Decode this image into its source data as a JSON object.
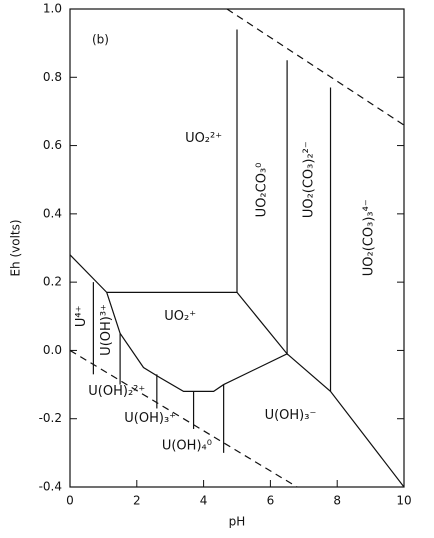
{
  "chart_data": {
    "type": "line",
    "annotation": "(b)",
    "xlabel": "pH",
    "ylabel": "Eh (volts)",
    "xlim": [
      0,
      10
    ],
    "ylim": [
      -0.4,
      1.0
    ],
    "xticks": [
      0,
      2,
      4,
      6,
      8,
      10
    ],
    "yticks": [
      {
        "value": 1.0,
        "label": "1.0"
      },
      0.8,
      0.6,
      0.4,
      0.2,
      {
        "value": 0,
        "label": "0.0"
      },
      -0.2,
      -0.4
    ],
    "color": "#111111",
    "boundaries": [
      {
        "x": [
          4.7,
          10
        ],
        "y": [
          1.0,
          0.66
        ],
        "dashed": true
      },
      {
        "x": [
          0,
          6.8
        ],
        "y": [
          0,
          -0.4
        ],
        "dashed": true
      },
      {
        "x": [
          0,
          1.1,
          1.5,
          2.2,
          2.7,
          3.4,
          4.3,
          4.6,
          6.5,
          7.8,
          10
        ],
        "y": [
          0.28,
          0.17,
          0.05,
          -0.05,
          -0.08,
          -0.12,
          -0.12,
          -0.1,
          -0.01,
          -0.12,
          -0.4
        ],
        "dashed": false
      },
      {
        "x": [
          1.1,
          5.0,
          5.0
        ],
        "y": [
          0.17,
          0.17,
          0.94
        ],
        "dashed": false
      },
      {
        "x": [
          5.0,
          6.5,
          6.5
        ],
        "y": [
          0.17,
          -0.01,
          0.85
        ],
        "dashed": false
      },
      {
        "x": [
          7.8,
          7.8
        ],
        "y": [
          -0.12,
          0.77
        ],
        "dashed": false
      },
      {
        "x": [
          0.7,
          0.7
        ],
        "y": [
          0.2,
          -0.07
        ],
        "dashed": false
      },
      {
        "x": [
          1.5,
          1.5
        ],
        "y": [
          0.05,
          -0.1
        ],
        "dashed": false
      },
      {
        "x": [
          2.6,
          2.6
        ],
        "y": [
          -0.07,
          -0.17
        ],
        "dashed": false
      },
      {
        "x": [
          3.7,
          3.7
        ],
        "y": [
          -0.12,
          -0.23
        ],
        "dashed": false
      },
      {
        "x": [
          4.6,
          4.6
        ],
        "y": [
          -0.1,
          -0.3
        ],
        "dashed": false
      }
    ],
    "regions": [
      {
        "label": "UO₂²⁺",
        "x": 4.0,
        "y": 0.62,
        "vertical": false
      },
      {
        "label": "UO₂CO₃⁰",
        "x": 5.75,
        "y": 0.47,
        "vertical": true
      },
      {
        "label": "UO₂(CO₃)₂²⁻",
        "x": 7.15,
        "y": 0.5,
        "vertical": true
      },
      {
        "label": "UO₂(CO₃)₃⁴⁻",
        "x": 8.95,
        "y": 0.33,
        "vertical": true
      },
      {
        "label": "U⁴⁺",
        "x": 0.35,
        "y": 0.1,
        "vertical": true
      },
      {
        "label": "U(OH)³⁺",
        "x": 1.1,
        "y": 0.06,
        "vertical": true
      },
      {
        "label": "UO₂⁺",
        "x": 3.3,
        "y": 0.1,
        "vertical": false
      },
      {
        "label": "U(OH)₂²⁺",
        "x": 1.4,
        "y": -0.12,
        "vertical": false
      },
      {
        "label": "U(OH)₃⁺",
        "x": 2.4,
        "y": -0.2,
        "vertical": false
      },
      {
        "label": "U(OH)₄⁰",
        "x": 3.5,
        "y": -0.28,
        "vertical": false
      },
      {
        "label": "U(OH)₃⁻",
        "x": 6.6,
        "y": -0.19,
        "vertical": false
      }
    ]
  }
}
